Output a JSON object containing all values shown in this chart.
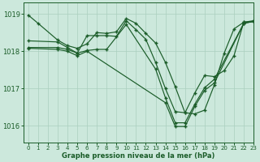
{
  "title": "Graphe pression niveau de la mer (hPa)",
  "bg_color": "#cce8dc",
  "grid_color": "#aacfbf",
  "line_color": "#1a5c28",
  "xlim": [
    -0.5,
    23
  ],
  "ylim": [
    1015.55,
    1019.3
  ],
  "yticks": [
    1016,
    1017,
    1018,
    1019
  ],
  "xticks": [
    0,
    1,
    2,
    3,
    4,
    5,
    6,
    7,
    8,
    9,
    10,
    11,
    12,
    13,
    14,
    15,
    16,
    17,
    18,
    19,
    20,
    21,
    22,
    23
  ],
  "series": [
    {
      "x": [
        0,
        1,
        3,
        4,
        5,
        6,
        7,
        8,
        9,
        10,
        11,
        12,
        13,
        14,
        15,
        16,
        17,
        18,
        19,
        20,
        21,
        22,
        23
      ],
      "y": [
        1018.97,
        1018.75,
        1018.3,
        1018.15,
        1018.08,
        1018.2,
        1018.5,
        1018.48,
        1018.52,
        1018.88,
        1018.75,
        1018.48,
        1018.22,
        1017.7,
        1017.05,
        1016.35,
        1016.32,
        1016.42,
        1017.1,
        1017.95,
        1018.6,
        1018.78,
        1018.82
      ]
    },
    {
      "x": [
        0,
        3,
        4,
        5,
        6,
        7,
        8,
        9,
        10,
        11,
        12,
        13,
        14,
        15,
        16,
        17,
        18,
        19,
        20,
        21,
        22,
        23
      ],
      "y": [
        1018.28,
        1018.25,
        1018.1,
        1017.95,
        1018.42,
        1018.42,
        1018.42,
        1018.4,
        1018.82,
        1018.58,
        1018.32,
        1017.7,
        1017.0,
        1016.38,
        1016.35,
        1016.88,
        1017.35,
        1017.32,
        1017.48,
        1017.88,
        1018.78,
        1018.8
      ]
    },
    {
      "x": [
        0,
        3,
        4,
        5,
        6,
        7,
        8,
        10,
        13,
        14,
        15,
        16,
        17,
        18,
        19,
        22,
        23
      ],
      "y": [
        1018.1,
        1018.1,
        1018.05,
        1017.95,
        1018.02,
        1018.05,
        1018.05,
        1018.72,
        1017.52,
        1016.75,
        1016.08,
        1016.08,
        1016.58,
        1017.02,
        1017.25,
        1018.75,
        1018.8
      ]
    },
    {
      "x": [
        0,
        3,
        4,
        5,
        6,
        14,
        15,
        16,
        17,
        18,
        19,
        22,
        23
      ],
      "y": [
        1018.08,
        1018.05,
        1018.0,
        1017.88,
        1018.0,
        1016.62,
        1015.98,
        1015.98,
        1016.52,
        1016.95,
        1017.15,
        1018.75,
        1018.8
      ]
    }
  ]
}
